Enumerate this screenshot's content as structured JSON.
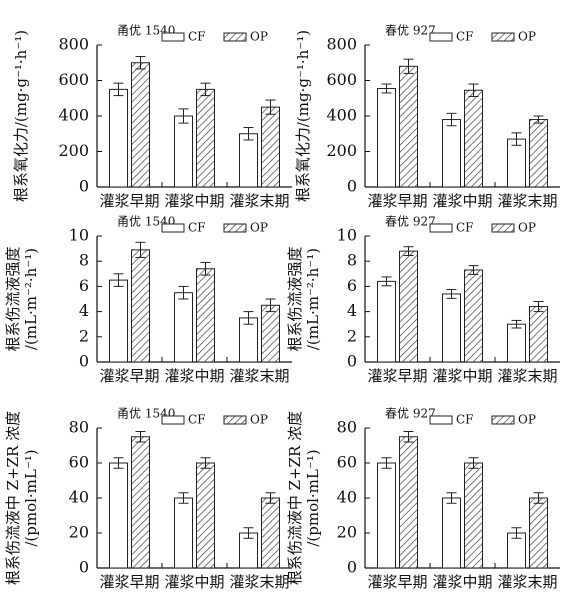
{
  "chart_data": [
    {
      "type": "bar",
      "title": "甬优 1540",
      "ylabel": [
        "根系氧化力/(mg·g⁻¹·h⁻¹)"
      ],
      "categories": [
        "灌浆早期",
        "灌浆中期",
        "灌浆末期"
      ],
      "series": [
        {
          "name": "CF",
          "color": "#ffffff",
          "hatch": false,
          "values": [
            550,
            400,
            300
          ],
          "errors": [
            35,
            40,
            35
          ]
        },
        {
          "name": "OP",
          "color": "#555555",
          "hatch": true,
          "values": [
            700,
            550,
            450
          ],
          "errors": [
            35,
            35,
            40
          ]
        }
      ],
      "ylim": [
        0,
        800
      ],
      "yticks": [
        0,
        200,
        400,
        600,
        800
      ],
      "grid": false,
      "legend": "top-right"
    },
    {
      "type": "bar",
      "title": "春优 927",
      "ylabel": [
        "根系氧化力/(mg·g⁻¹·h⁻¹)"
      ],
      "categories": [
        "灌浆早期",
        "灌浆中期",
        "灌浆末期"
      ],
      "series": [
        {
          "name": "CF",
          "color": "#ffffff",
          "hatch": false,
          "values": [
            555,
            380,
            270
          ],
          "errors": [
            25,
            35,
            35
          ]
        },
        {
          "name": "OP",
          "color": "#555555",
          "hatch": true,
          "values": [
            680,
            545,
            380
          ],
          "errors": [
            40,
            35,
            20
          ]
        }
      ],
      "ylim": [
        0,
        800
      ],
      "yticks": [
        0,
        200,
        400,
        600,
        800
      ],
      "grid": false,
      "legend": "top-right"
    },
    {
      "type": "bar",
      "title": "甬优 1540",
      "ylabel": [
        "根系伤流液强度",
        "/(mL·m⁻²·h⁻¹)"
      ],
      "categories": [
        "灌浆早期",
        "灌浆中期",
        "灌浆末期"
      ],
      "series": [
        {
          "name": "CF",
          "color": "#ffffff",
          "hatch": false,
          "values": [
            6.5,
            5.5,
            3.5
          ],
          "errors": [
            0.5,
            0.5,
            0.5
          ]
        },
        {
          "name": "OP",
          "color": "#555555",
          "hatch": true,
          "values": [
            8.9,
            7.4,
            4.5
          ],
          "errors": [
            0.6,
            0.5,
            0.5
          ]
        }
      ],
      "ylim": [
        0,
        10
      ],
      "yticks": [
        0,
        2,
        4,
        6,
        8,
        10
      ],
      "grid": false,
      "legend": "top-right"
    },
    {
      "type": "bar",
      "title": "春优 927",
      "ylabel": [
        "根系伤流液强度",
        "/(mL·m⁻²·h⁻¹)"
      ],
      "categories": [
        "灌浆早期",
        "灌浆中期",
        "灌浆末期"
      ],
      "series": [
        {
          "name": "CF",
          "color": "#ffffff",
          "hatch": false,
          "values": [
            6.4,
            5.4,
            3.0
          ],
          "errors": [
            0.35,
            0.35,
            0.3
          ]
        },
        {
          "name": "OP",
          "color": "#555555",
          "hatch": true,
          "values": [
            8.8,
            7.3,
            4.4
          ],
          "errors": [
            0.35,
            0.35,
            0.4
          ]
        }
      ],
      "ylim": [
        0,
        10
      ],
      "yticks": [
        0,
        2,
        4,
        6,
        8,
        10
      ],
      "grid": false,
      "legend": "top-right"
    },
    {
      "type": "bar",
      "title": "甬优 1540",
      "ylabel": [
        "根系伤流液中 Z+ZR 浓度",
        "/(pmol·mL⁻¹)"
      ],
      "categories": [
        "灌浆早期",
        "灌浆中期",
        "灌浆末期"
      ],
      "series": [
        {
          "name": "CF",
          "color": "#ffffff",
          "hatch": false,
          "values": [
            60,
            40,
            20
          ],
          "errors": [
            3,
            3,
            3
          ]
        },
        {
          "name": "OP",
          "color": "#555555",
          "hatch": true,
          "values": [
            75,
            60,
            40
          ],
          "errors": [
            3,
            3,
            3
          ]
        }
      ],
      "ylim": [
        0,
        80
      ],
      "yticks": [
        0,
        20,
        40,
        60,
        80
      ],
      "grid": false,
      "legend": "top-right"
    },
    {
      "type": "bar",
      "title": "春优 927",
      "ylabel": [
        "根系伤流液中 Z+ZR 浓度",
        "/(pmol·mL⁻¹)"
      ],
      "categories": [
        "灌浆早期",
        "灌浆中期",
        "灌浆末期"
      ],
      "series": [
        {
          "name": "CF",
          "color": "#ffffff",
          "hatch": false,
          "values": [
            60,
            40,
            20
          ],
          "errors": [
            3,
            3,
            3
          ]
        },
        {
          "name": "OP",
          "color": "#555555",
          "hatch": true,
          "values": [
            75,
            60,
            40
          ],
          "errors": [
            3,
            3,
            3
          ]
        }
      ],
      "ylim": [
        0,
        80
      ],
      "yticks": [
        0,
        20,
        40,
        60,
        80
      ],
      "grid": false,
      "legend": "top-right"
    }
  ]
}
